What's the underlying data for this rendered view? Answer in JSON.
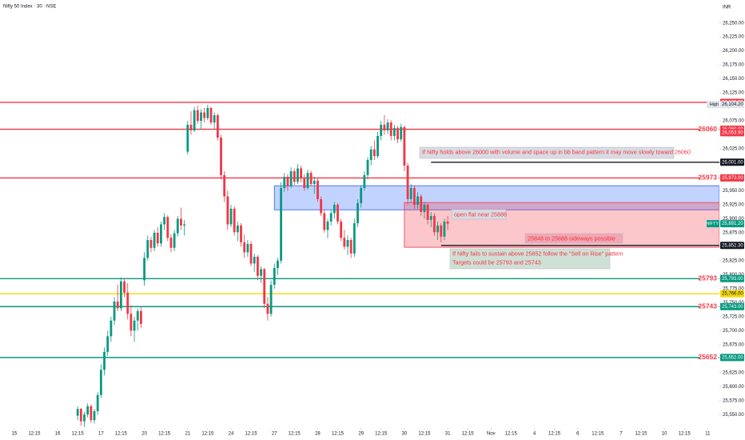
{
  "chart_data": {
    "type": "candlestick",
    "title": "Nifty 50 Index · 30 · NSE",
    "currency": "INR",
    "colors": {
      "up": "#089981",
      "down": "#f23645"
    },
    "grid": false,
    "ylim": [
      25526,
      26291
    ],
    "xlim": [
      -4.3,
      211.5
    ],
    "yticks": [
      {
        "value": 25550,
        "label": "25,550.00"
      },
      {
        "value": 25575,
        "label": "25,575.00"
      },
      {
        "value": 25600,
        "label": "25,600.00"
      },
      {
        "value": 25625,
        "label": "25,625.00"
      },
      {
        "value": 25650,
        "label": "25,650.00"
      },
      {
        "value": 25675,
        "label": "25,675.00"
      },
      {
        "value": 25700,
        "label": "25,700.00"
      },
      {
        "value": 25725,
        "label": "25,725.00"
      },
      {
        "value": 25750,
        "label": "25,750.00"
      },
      {
        "value": 25775,
        "label": "25,775.00"
      },
      {
        "value": 25800,
        "label": "25,800.00"
      },
      {
        "value": 25825,
        "label": "25,825.00"
      },
      {
        "value": 25850,
        "label": "25,850.00"
      },
      {
        "value": 25875,
        "label": "25,875.00"
      },
      {
        "value": 25900,
        "label": "25,900.00"
      },
      {
        "value": 25925,
        "label": "25,925.00"
      },
      {
        "value": 25950,
        "label": "25,950.00"
      },
      {
        "value": 25975,
        "label": "25,975.00"
      },
      {
        "value": 26000,
        "label": "26,000.00"
      },
      {
        "value": 26025,
        "label": "26,025.00"
      },
      {
        "value": 26050,
        "label": "26,050.00"
      },
      {
        "value": 26075,
        "label": "26,075.00"
      },
      {
        "value": 26100,
        "label": "26,100.00"
      },
      {
        "value": 26125,
        "label": "26,125.00"
      },
      {
        "value": 26150,
        "label": "26,150.00"
      },
      {
        "value": 26175,
        "label": "26,175.00"
      },
      {
        "value": 26200,
        "label": "26,200.00"
      },
      {
        "value": 26225,
        "label": "26,225.00"
      },
      {
        "value": 26250,
        "label": "26,250.00"
      }
    ],
    "xticks": [
      {
        "value": 0,
        "label": "15"
      },
      {
        "value": 6,
        "label": "12:15"
      },
      {
        "value": 13,
        "label": "16"
      },
      {
        "value": 19,
        "label": "12:15"
      },
      {
        "value": 26,
        "label": "17"
      },
      {
        "value": 32,
        "label": "12:15"
      },
      {
        "value": 39,
        "label": "20"
      },
      {
        "value": 45,
        "label": "12:15"
      },
      {
        "value": 52,
        "label": "21"
      },
      {
        "value": 58,
        "label": "12:15"
      },
      {
        "value": 65,
        "label": "24"
      },
      {
        "value": 71,
        "label": "12:15"
      },
      {
        "value": 78,
        "label": "27"
      },
      {
        "value": 84,
        "label": "12:15"
      },
      {
        "value": 91,
        "label": "28"
      },
      {
        "value": 97,
        "label": "12:15"
      },
      {
        "value": 104,
        "label": "29"
      },
      {
        "value": 110,
        "label": "12:15"
      },
      {
        "value": 117,
        "label": "30"
      },
      {
        "value": 123,
        "label": "12:15"
      },
      {
        "value": 130,
        "label": "31"
      },
      {
        "value": 136,
        "label": "12:15"
      },
      {
        "value": 143,
        "label": "Nov"
      },
      {
        "value": 149,
        "label": "12:15"
      },
      {
        "value": 156,
        "label": "4"
      },
      {
        "value": 162,
        "label": "12:15"
      },
      {
        "value": 169,
        "label": "6"
      },
      {
        "value": 175,
        "label": "12:15"
      },
      {
        "value": 182,
        "label": "7"
      },
      {
        "value": 188,
        "label": "12:15"
      },
      {
        "value": 195,
        "label": "10"
      },
      {
        "value": 201,
        "label": "12:15"
      },
      {
        "value": 208,
        "label": "11"
      }
    ],
    "candles": [
      null,
      null,
      null,
      null,
      null,
      null,
      null,
      null,
      null,
      null,
      null,
      null,
      null,
      null,
      null,
      null,
      null,
      null,
      null,
      [
        25548,
        25565,
        25540,
        25560
      ],
      [
        25560,
        25562,
        25530,
        25538
      ],
      [
        25538,
        25555,
        25528,
        25550
      ],
      [
        25550,
        25570,
        25545,
        25565
      ],
      [
        25565,
        25568,
        25535,
        25540
      ],
      [
        25540,
        25560,
        25534,
        25556
      ],
      [
        25556,
        25590,
        25550,
        25585
      ],
      [
        25585,
        25640,
        25580,
        25630
      ],
      [
        25630,
        25670,
        25620,
        25662
      ],
      [
        25662,
        25700,
        25655,
        25690
      ],
      [
        25690,
        25725,
        25680,
        25718
      ],
      [
        25718,
        25760,
        25710,
        25752
      ],
      [
        25752,
        25782,
        25735,
        25740
      ],
      [
        25740,
        25795,
        25735,
        25788
      ],
      [
        25788,
        25792,
        25760,
        25768
      ],
      [
        25768,
        25785,
        25720,
        25730
      ],
      [
        25730,
        25745,
        25690,
        25700
      ],
      [
        25700,
        25725,
        25680,
        25718
      ],
      [
        25718,
        25740,
        25700,
        25735
      ],
      [
        25735,
        25742,
        25705,
        25712
      ],
      [
        25790,
        25840,
        25780,
        25830
      ],
      [
        25830,
        25870,
        25825,
        25862
      ],
      [
        25862,
        25868,
        25840,
        25848
      ],
      [
        25848,
        25880,
        25842,
        25875
      ],
      [
        25875,
        25885,
        25850,
        25856
      ],
      [
        25856,
        25895,
        25850,
        25890
      ],
      [
        25890,
        25910,
        25880,
        25903
      ],
      [
        25903,
        25906,
        25860,
        25866
      ],
      [
        25866,
        25872,
        25840,
        25848
      ],
      [
        25848,
        25880,
        25842,
        25874
      ],
      [
        25874,
        25905,
        25868,
        25900
      ],
      [
        25900,
        25920,
        25880,
        25888
      ],
      [
        25888,
        25898,
        25870,
        25890
      ],
      [
        26020,
        26075,
        26015,
        26068
      ],
      [
        26068,
        26092,
        26050,
        26058
      ],
      [
        26058,
        26100,
        26055,
        26094
      ],
      [
        26094,
        26102,
        26070,
        26075
      ],
      [
        26075,
        26096,
        26060,
        26090
      ],
      [
        26090,
        26098,
        26072,
        26080
      ],
      [
        26080,
        26104,
        26076,
        26098
      ],
      [
        26098,
        26100,
        26068,
        26072
      ],
      [
        26072,
        26090,
        26060,
        26085
      ],
      [
        26085,
        26088,
        26040,
        26045
      ],
      [
        26045,
        26050,
        25970,
        25978
      ],
      [
        25978,
        25985,
        25930,
        25940
      ],
      [
        25940,
        25950,
        25880,
        25890
      ],
      [
        25890,
        25925,
        25885,
        25918
      ],
      [
        25918,
        25922,
        25870,
        25876
      ],
      [
        25876,
        25895,
        25860,
        25888
      ],
      [
        25888,
        25892,
        25850,
        25858
      ],
      [
        25858,
        25872,
        25830,
        25840
      ],
      [
        25840,
        25862,
        25832,
        25855
      ],
      [
        25855,
        25860,
        25815,
        25820
      ],
      [
        25820,
        25838,
        25805,
        25832
      ],
      [
        25832,
        25835,
        25790,
        25798
      ],
      [
        25798,
        25815,
        25785,
        25810
      ],
      [
        25810,
        25812,
        25740,
        25748
      ],
      [
        25748,
        25760,
        25718,
        25730
      ],
      [
        25730,
        25790,
        25725,
        25782
      ],
      [
        25782,
        25820,
        25775,
        25812
      ],
      [
        25812,
        25830,
        25800,
        25825
      ],
      [
        25825,
        25965,
        25820,
        25955
      ],
      [
        25955,
        25982,
        25948,
        25975
      ],
      [
        25975,
        25980,
        25950,
        25958
      ],
      [
        25958,
        25992,
        25955,
        25985
      ],
      [
        25985,
        25990,
        25960,
        25966
      ],
      [
        25966,
        25998,
        25962,
        25990
      ],
      [
        25990,
        25995,
        25965,
        25972
      ],
      [
        25972,
        25980,
        25950,
        25955
      ],
      [
        25955,
        25988,
        25952,
        25982
      ],
      [
        25982,
        25986,
        25958,
        25962
      ],
      [
        25962,
        25975,
        25945,
        25968
      ],
      [
        25968,
        25972,
        25930,
        25935
      ],
      [
        25935,
        25940,
        25905,
        25910
      ],
      [
        25910,
        25915,
        25875,
        25880
      ],
      [
        25880,
        25900,
        25865,
        25895
      ],
      [
        25895,
        25915,
        25888,
        25910
      ],
      [
        25910,
        25930,
        25900,
        25925
      ],
      [
        25925,
        25928,
        25890,
        25895
      ],
      [
        25895,
        25900,
        25860,
        25866
      ],
      [
        25866,
        25880,
        25845,
        25850
      ],
      [
        25850,
        25870,
        25835,
        25862
      ],
      [
        25862,
        25866,
        25830,
        25838
      ],
      [
        25838,
        25900,
        25832,
        25892
      ],
      [
        25892,
        25935,
        25885,
        25928
      ],
      [
        25928,
        25960,
        25920,
        25955
      ],
      [
        25955,
        25985,
        25950,
        25978
      ],
      [
        25978,
        26010,
        25970,
        26005
      ],
      [
        26005,
        26030,
        25995,
        26024
      ],
      [
        26024,
        26040,
        26005,
        26012
      ],
      [
        26012,
        26055,
        26008,
        26048
      ],
      [
        26048,
        26075,
        26040,
        26068
      ],
      [
        26068,
        26085,
        26050,
        26058
      ],
      [
        26058,
        26078,
        26052,
        26072
      ],
      [
        26072,
        26076,
        26040,
        26048
      ],
      [
        26048,
        26068,
        26040,
        26062
      ],
      [
        26062,
        26066,
        26035,
        26042
      ],
      [
        26042,
        26070,
        26038,
        26064
      ],
      [
        26064,
        26066,
        25985,
        25995
      ],
      [
        25995,
        26000,
        25925,
        25935
      ],
      [
        25935,
        25962,
        25928,
        25955
      ],
      [
        25955,
        25960,
        25918,
        25925
      ],
      [
        25925,
        25948,
        25918,
        25940
      ],
      [
        25940,
        25944,
        25905,
        25912
      ],
      [
        25912,
        25930,
        25900,
        25925
      ],
      [
        25925,
        25928,
        25890,
        25898
      ],
      [
        25898,
        25912,
        25885,
        25905
      ],
      [
        25905,
        25910,
        25870,
        25876
      ],
      [
        25876,
        25895,
        25862,
        25888
      ],
      [
        25888,
        25892,
        25858,
        25868
      ],
      [
        25868,
        25900,
        25862,
        25895
      ],
      [
        25895,
        25905,
        25880,
        25891.2
      ]
    ],
    "zones": [
      {
        "low": 25916,
        "high": 25959,
        "from": 78,
        "color": "#2962ff"
      },
      {
        "low": 25849,
        "high": 25929,
        "from": 117,
        "color": "#f23645"
      }
    ],
    "levels": [
      {
        "value": 26108.05,
        "tag": "26,108.05",
        "color": "#f23645",
        "show_value": false,
        "from": null
      },
      {
        "value": 26060,
        "tag": "26,060.00",
        "color": "#f23645",
        "show_value": true,
        "from": null
      },
      {
        "value": 26001,
        "tag": "26,001.00",
        "color": "#131722",
        "show_value": false,
        "from": 125
      },
      {
        "value": 25973,
        "tag": "25,973.00",
        "color": "#f23645",
        "show_value": true,
        "from": null
      },
      {
        "value": 25852.3,
        "tag": "25,852.30",
        "color": "#131722",
        "show_value": false,
        "from": 128
      },
      {
        "value": 25793,
        "tag": "25,793.00",
        "color": "#089981",
        "show_value": true,
        "from": null
      },
      {
        "value": 25766,
        "tag": "25,766.00",
        "color": "#f5d90a",
        "show_value": false,
        "from": null
      },
      {
        "value": 25743,
        "tag": "25,743.00",
        "color": "#089981",
        "show_value": true,
        "from": null
      },
      {
        "value": 25652,
        "tag": "25,652.00",
        "color": "#089981",
        "show_value": true,
        "from": null
      }
    ],
    "price_tags": [
      {
        "name": "High",
        "value": 26104.2,
        "label": "26,104.20",
        "color": "#e0e3eb",
        "text_color": "#131722"
      },
      {
        "name": null,
        "value": 26053.9,
        "label": "26,053.90",
        "color": "#f23645",
        "text_color": "#ffffff"
      },
      {
        "name": "NIFTY",
        "value": 25891.2,
        "label": "25,891.20",
        "color": "#089981",
        "text_color": "#ffffff"
      }
    ],
    "annotations": [
      {
        "lines": [
          "If Nifty holds above 26000 with volume and space up in bb band pattern it may move slowly toward 26060"
        ],
        "background": "#d9dce3"
      },
      {
        "lines": [
          "open flat near 25888"
        ],
        "background": "#d9dce3"
      },
      {
        "lines": [
          "25848  to  25888 sideways  possible"
        ],
        "background": "#f2a7b4"
      },
      {
        "lines": [
          "If Nifty fails to sustain above 25852 follow the \"Sell on Rise\" pattern",
          "Targets could be 25793 and 25743"
        ],
        "background": "#cfe0d6"
      }
    ]
  }
}
